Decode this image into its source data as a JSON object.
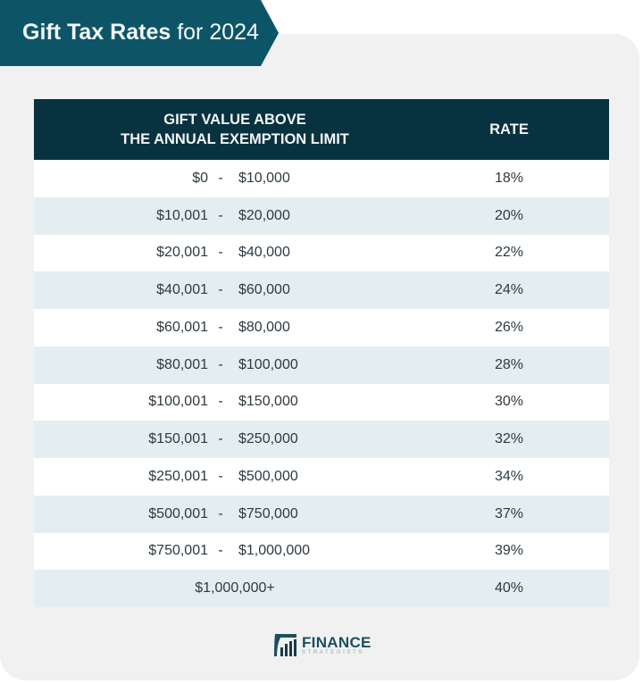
{
  "banner": {
    "title_bold": "Gift Tax Rates",
    "title_rest": "for 2024"
  },
  "table": {
    "header": {
      "col1_line1": "GIFT VALUE ABOVE",
      "col1_line2": "THE ANNUAL EXEMPTION LIMIT",
      "col2": "RATE"
    },
    "rows": [
      {
        "low": "$0",
        "sep": "-",
        "high": "$10,000",
        "rate": "18%"
      },
      {
        "low": "$10,001",
        "sep": "-",
        "high": "$20,000",
        "rate": "20%"
      },
      {
        "low": "$20,001",
        "sep": "-",
        "high": "$40,000",
        "rate": "22%"
      },
      {
        "low": "$40,001",
        "sep": "-",
        "high": "$60,000",
        "rate": "24%"
      },
      {
        "low": "$60,001",
        "sep": "-",
        "high": "$80,000",
        "rate": "26%"
      },
      {
        "low": "$80,001",
        "sep": "-",
        "high": "$100,000",
        "rate": "28%"
      },
      {
        "low": "$100,001",
        "sep": "-",
        "high": "$150,000",
        "rate": "30%"
      },
      {
        "low": "$150,001",
        "sep": "-",
        "high": "$250,000",
        "rate": "32%"
      },
      {
        "low": "$250,001",
        "sep": "-",
        "high": "$500,000",
        "rate": "34%"
      },
      {
        "low": "$500,001",
        "sep": "-",
        "high": "$750,000",
        "rate": "37%"
      },
      {
        "low": "$750,001",
        "sep": "-",
        "high": "$1,000,000",
        "rate": "39%"
      }
    ],
    "last_row": {
      "range": "$1,000,000+",
      "rate": "40%"
    }
  },
  "logo": {
    "main": "FINANCE",
    "sub": "STRATEGISTS",
    "icon": "bar-chart-logo-icon"
  },
  "colors": {
    "banner": "#0d5566",
    "header": "#08323f",
    "row_alt": "#e4eef0",
    "card": "#f1f1f1"
  }
}
